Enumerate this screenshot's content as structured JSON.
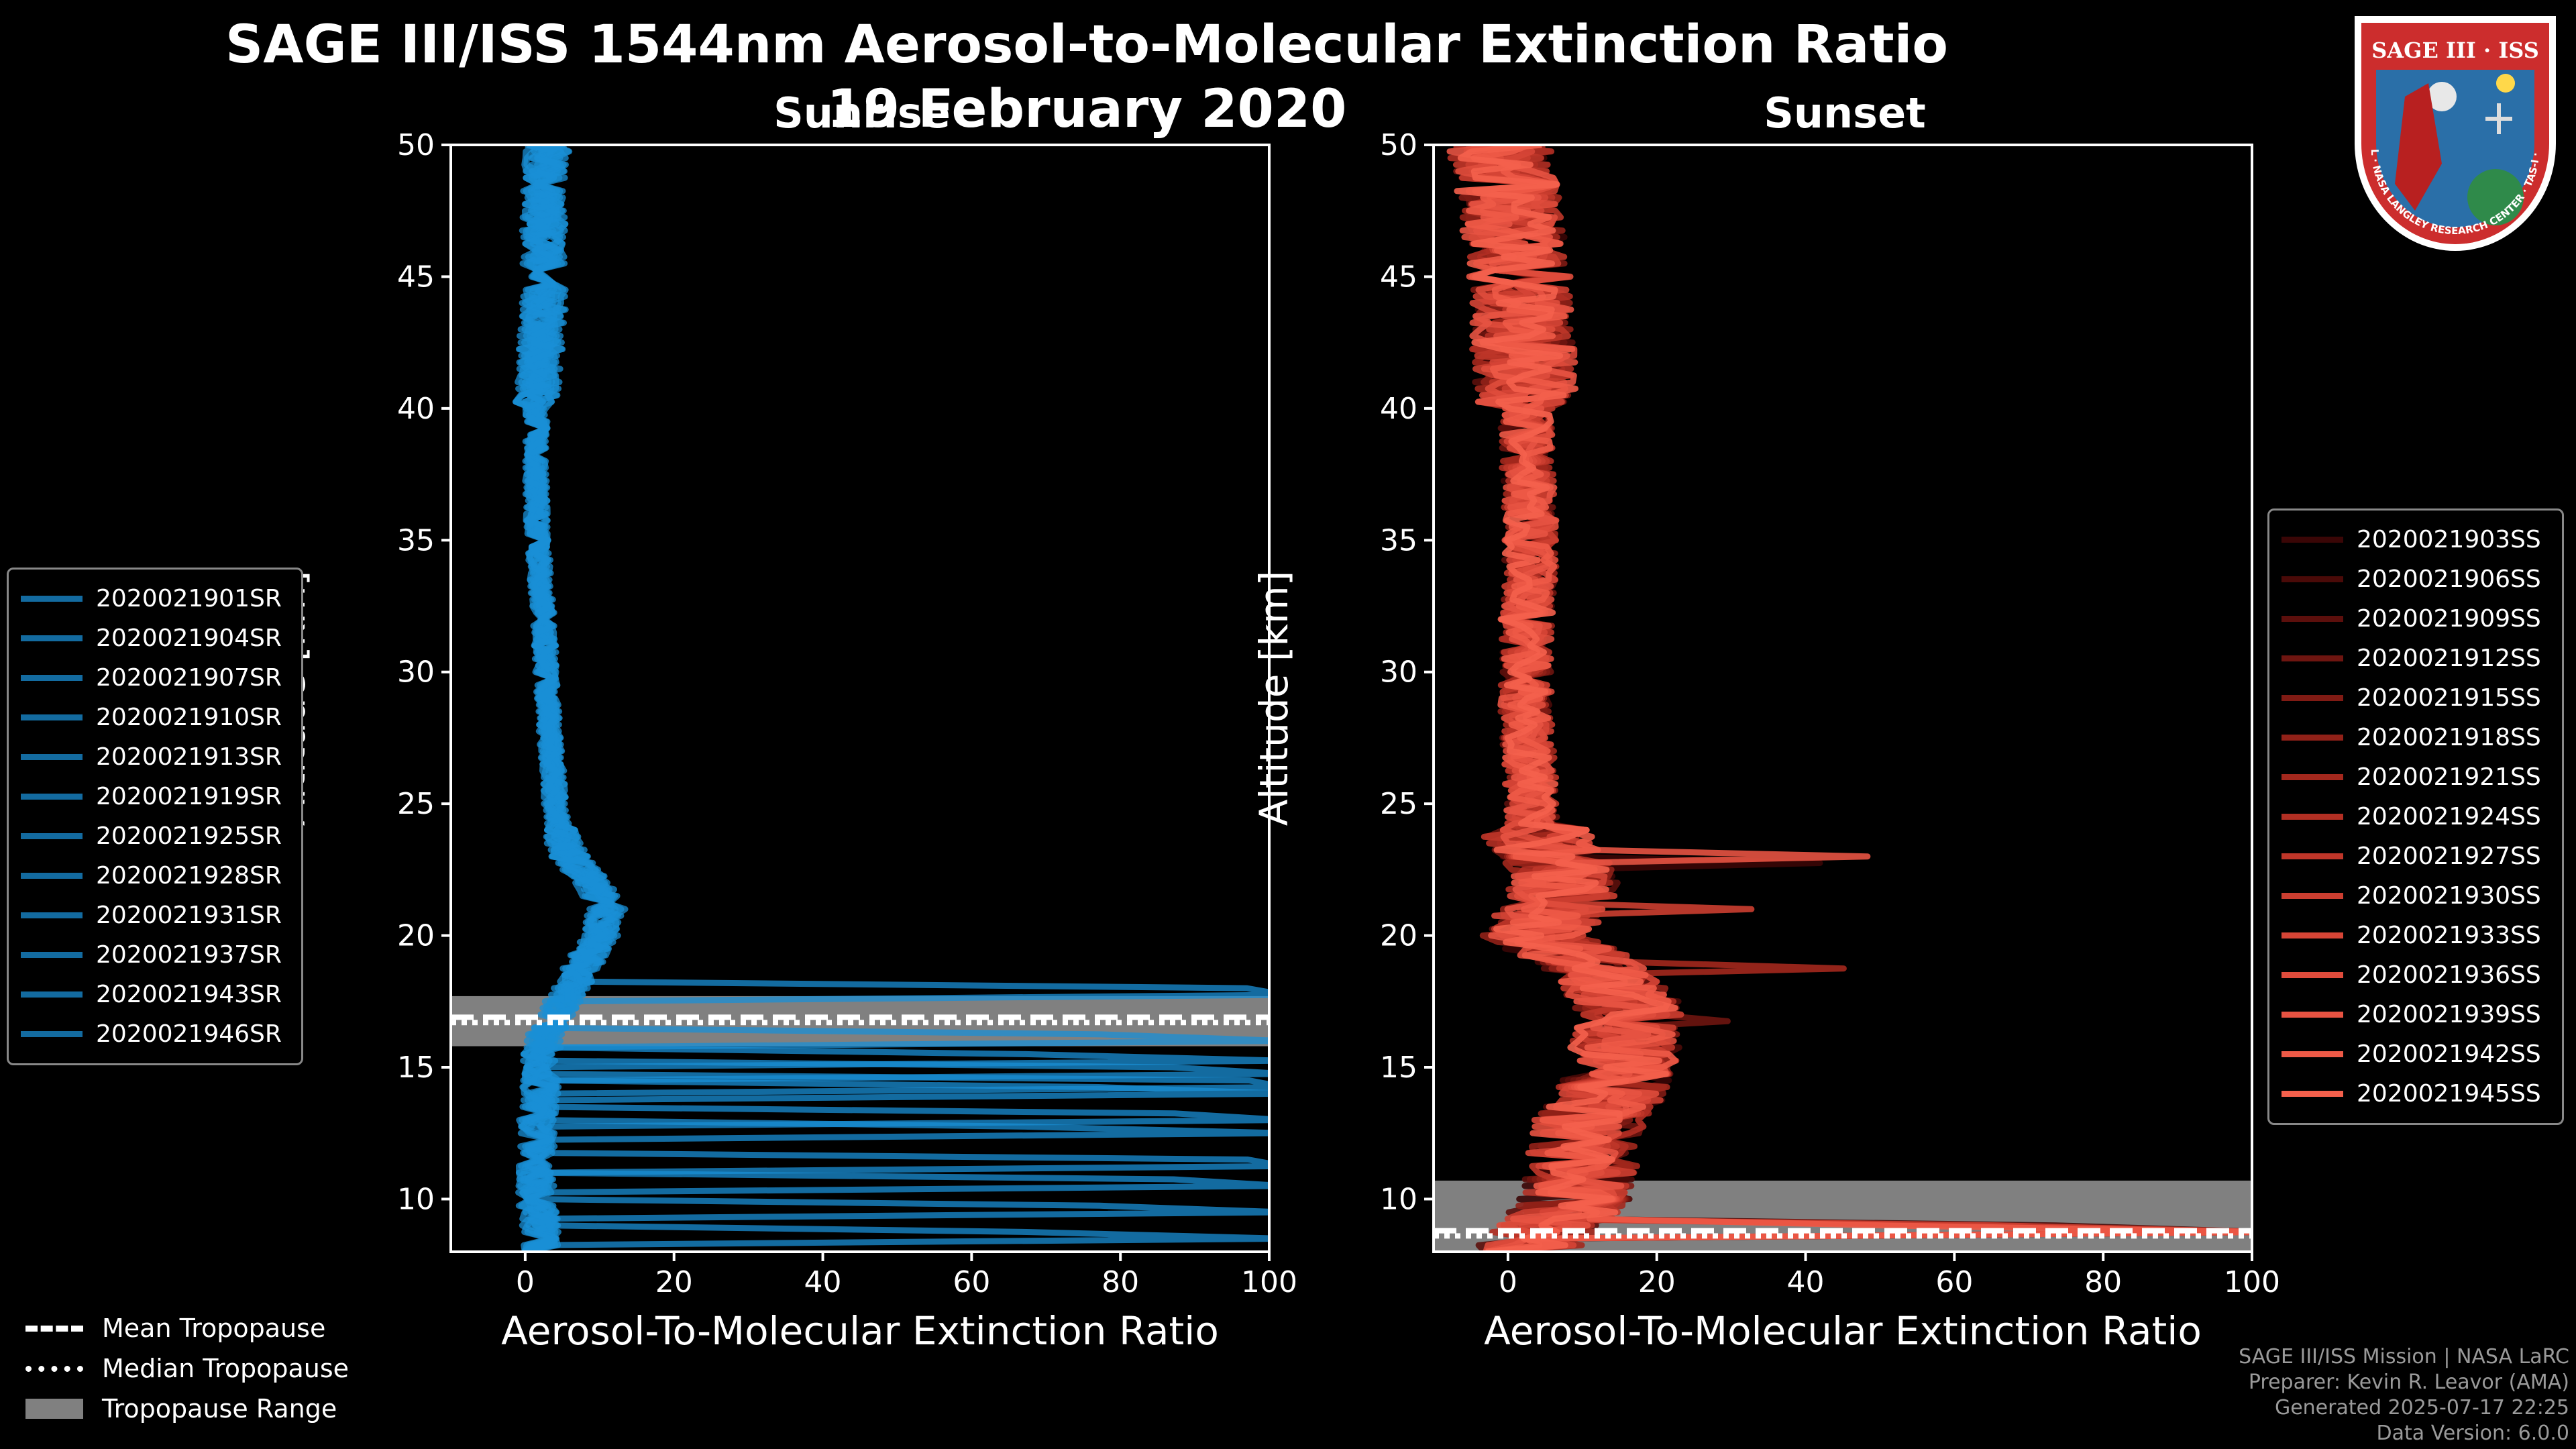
{
  "title_line1": "SAGE III/ISS 1544nm Aerosol-to-Molecular Extinction Ratio",
  "title_line2": "19 February 2020",
  "logo": {
    "text": "SAGE III · ISS",
    "ring_text": "BALL · NASA LANGLEY RESEARCH CENTER · TAS-I · ESA",
    "colors": {
      "ring": "#cc2d2d",
      "inner": "#2a6fa8",
      "border": "#ffffff"
    }
  },
  "credits": [
    "SAGE III/ISS Mission | NASA LaRC",
    "Preparer: Kevin R. Leavor (AMA)",
    "Generated 2025-07-17 22:25",
    "Data Version: 6.0.0"
  ],
  "bottom_legend": [
    {
      "label": "Mean Tropopause",
      "style": "dashed"
    },
    {
      "label": "Median Tropopause",
      "style": "dotted"
    },
    {
      "label": "Tropopause Range",
      "style": "band"
    }
  ],
  "chart_data": [
    {
      "type": "line",
      "title": "Sunrise",
      "xlabel": "Aerosol-To-Molecular Extinction Ratio",
      "ylabel": "Altitude [km]",
      "xlim": [
        -10,
        100
      ],
      "ylim": [
        8,
        50
      ],
      "xticks": [
        0,
        20,
        40,
        60,
        80,
        100
      ],
      "yticks": [
        10,
        15,
        20,
        25,
        30,
        35,
        40,
        45,
        50
      ],
      "grid": false,
      "legend_position": "left",
      "color": "#1a8fd6",
      "tropopause": {
        "mean": 16.9,
        "median": 16.7,
        "range": [
          15.8,
          17.7
        ]
      },
      "profile": {
        "altitudes": [
          8,
          9,
          10,
          11,
          12,
          13,
          14,
          15,
          16,
          17,
          18,
          19,
          20,
          21,
          22,
          23,
          24,
          25,
          26,
          27,
          28,
          29,
          30,
          32,
          34,
          36,
          38,
          40,
          42,
          44,
          46,
          48,
          50
        ],
        "values": [
          2,
          2,
          1.5,
          1.5,
          1.5,
          1.5,
          2,
          2,
          2.5,
          4,
          6,
          8,
          10,
          11,
          9,
          6,
          4.5,
          4,
          3.8,
          3.5,
          3.2,
          3,
          2.8,
          2.5,
          2,
          1.5,
          1.5,
          1.5,
          2,
          2.5,
          2.5,
          2.5,
          3
        ]
      },
      "series": [
        {
          "name": "2020021901SR",
          "low_spike_km": 17.8
        },
        {
          "name": "2020021904SR",
          "low_spike_km": 14.8
        },
        {
          "name": "2020021907SR",
          "low_spike_km": 13.9
        },
        {
          "name": "2020021910SR",
          "low_spike_km": 12.4
        },
        {
          "name": "2020021913SR",
          "low_spike_km": 11.2
        },
        {
          "name": "2020021919SR",
          "low_spike_km": 10.4
        },
        {
          "name": "2020021925SR",
          "low_spike_km": 9.4
        },
        {
          "name": "2020021928SR",
          "low_spike_km": 15.3
        },
        {
          "name": "2020021931SR",
          "low_spike_km": 14.2
        },
        {
          "name": "2020021937SR",
          "low_spike_km": 13.1
        },
        {
          "name": "2020021943SR",
          "low_spike_km": 16.1
        },
        {
          "name": "2020021946SR",
          "low_spike_km": 8.6
        }
      ]
    },
    {
      "type": "line",
      "title": "Sunset",
      "xlabel": "Aerosol-To-Molecular Extinction Ratio",
      "ylabel": "Altitude [km]",
      "xlim": [
        -10,
        100
      ],
      "ylim": [
        8,
        50
      ],
      "xticks": [
        0,
        20,
        40,
        60,
        80,
        100
      ],
      "yticks": [
        10,
        15,
        20,
        25,
        30,
        35,
        40,
        45,
        50
      ],
      "grid": false,
      "legend_position": "right",
      "color": "#f0604a",
      "tropopause": {
        "mean": 8.8,
        "median": 8.6,
        "range": [
          8.0,
          10.7
        ]
      },
      "profile": {
        "altitudes": [
          8,
          9,
          10,
          11,
          12,
          13,
          14,
          15,
          16,
          17,
          18,
          19,
          20,
          21,
          22,
          23,
          24,
          25,
          26,
          27,
          28,
          29,
          30,
          32,
          34,
          36,
          38,
          40,
          42,
          44,
          46,
          48,
          50
        ],
        "values": [
          2,
          6,
          9,
          10,
          10,
          11,
          14,
          15,
          16,
          17,
          14,
          10,
          4,
          6,
          8,
          6,
          3.5,
          3,
          3,
          2.8,
          2.5,
          2.5,
          2.5,
          2.5,
          3,
          3,
          2.5,
          2.5,
          2,
          2,
          1,
          0,
          -1
        ]
      },
      "series": [
        {
          "name": "2020021903SS",
          "color": "#3a0606"
        },
        {
          "name": "2020021906SS",
          "color": "#4a0a08"
        },
        {
          "name": "2020021909SS",
          "color": "#5c0f0c"
        },
        {
          "name": "2020021912SS",
          "color": "#6e1510"
        },
        {
          "name": "2020021915SS",
          "color": "#801b14"
        },
        {
          "name": "2020021918SS",
          "color": "#912118"
        },
        {
          "name": "2020021921SS",
          "color": "#a3281d"
        },
        {
          "name": "2020021924SS",
          "color": "#b22f23"
        },
        {
          "name": "2020021927SS",
          "color": "#bf3629"
        },
        {
          "name": "2020021930SS",
          "color": "#cb3e30"
        },
        {
          "name": "2020021933SS",
          "color": "#d64536"
        },
        {
          "name": "2020021936SS",
          "color": "#df4c3c"
        },
        {
          "name": "2020021939SS",
          "color": "#e75342"
        },
        {
          "name": "2020021942SS",
          "color": "#ee5a47"
        },
        {
          "name": "2020021945SS",
          "color": "#f4604c"
        }
      ]
    }
  ]
}
